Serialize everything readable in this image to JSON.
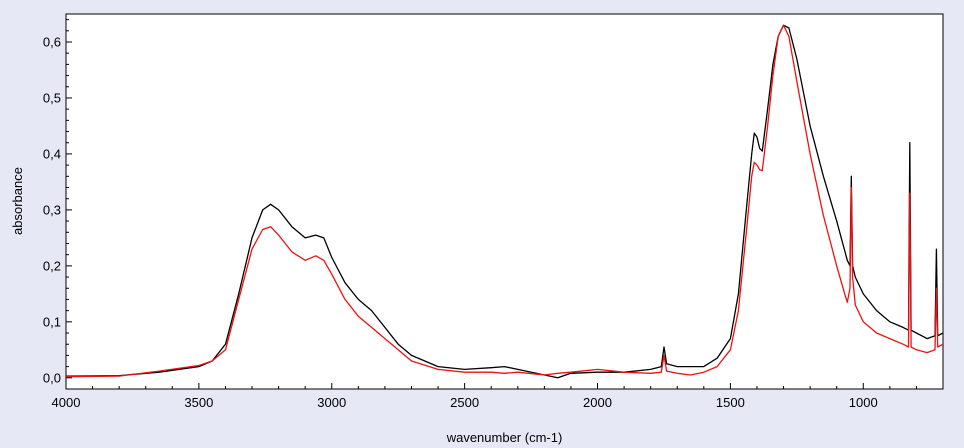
{
  "chart_data": {
    "type": "line",
    "title": "",
    "xlabel": "wavenumber (cm-1)",
    "ylabel": "absorbance",
    "xlim": [
      4000,
      700
    ],
    "ylim": [
      -0.02,
      0.65
    ],
    "x_reversed": true,
    "x_ticks": [
      4000,
      3500,
      3000,
      2500,
      2000,
      1500,
      1000
    ],
    "x_tick_labels": [
      "4000",
      "3500",
      "3000",
      "2500",
      "2000",
      "1500",
      "1000"
    ],
    "y_ticks": [
      0.0,
      0.1,
      0.2,
      0.3,
      0.4,
      0.5,
      0.6
    ],
    "y_tick_labels": [
      "0,0",
      "0,1",
      "0,2",
      "0,3",
      "0,4",
      "0,5",
      "0,6"
    ],
    "grid": false,
    "legend": "none",
    "series": [
      {
        "color": "#000000",
        "points": [
          [
            4000,
            0.003
          ],
          [
            3800,
            0.004
          ],
          [
            3650,
            0.01
          ],
          [
            3500,
            0.02
          ],
          [
            3450,
            0.03
          ],
          [
            3400,
            0.06
          ],
          [
            3350,
            0.15
          ],
          [
            3300,
            0.25
          ],
          [
            3260,
            0.3
          ],
          [
            3230,
            0.31
          ],
          [
            3200,
            0.3
          ],
          [
            3150,
            0.27
          ],
          [
            3100,
            0.25
          ],
          [
            3060,
            0.255
          ],
          [
            3030,
            0.25
          ],
          [
            3000,
            0.215
          ],
          [
            2950,
            0.17
          ],
          [
            2900,
            0.14
          ],
          [
            2850,
            0.12
          ],
          [
            2800,
            0.09
          ],
          [
            2750,
            0.06
          ],
          [
            2700,
            0.04
          ],
          [
            2600,
            0.02
          ],
          [
            2500,
            0.015
          ],
          [
            2400,
            0.018
          ],
          [
            2350,
            0.02
          ],
          [
            2300,
            0.015
          ],
          [
            2200,
            0.005
          ],
          [
            2150,
            0.0
          ],
          [
            2100,
            0.008
          ],
          [
            2000,
            0.01
          ],
          [
            1900,
            0.01
          ],
          [
            1800,
            0.015
          ],
          [
            1760,
            0.02
          ],
          [
            1750,
            0.055
          ],
          [
            1740,
            0.025
          ],
          [
            1700,
            0.02
          ],
          [
            1650,
            0.02
          ],
          [
            1600,
            0.02
          ],
          [
            1550,
            0.035
          ],
          [
            1500,
            0.07
          ],
          [
            1470,
            0.15
          ],
          [
            1440,
            0.3
          ],
          [
            1420,
            0.4
          ],
          [
            1410,
            0.437
          ],
          [
            1400,
            0.43
          ],
          [
            1390,
            0.41
          ],
          [
            1380,
            0.405
          ],
          [
            1360,
            0.48
          ],
          [
            1340,
            0.56
          ],
          [
            1320,
            0.61
          ],
          [
            1300,
            0.63
          ],
          [
            1280,
            0.625
          ],
          [
            1250,
            0.57
          ],
          [
            1200,
            0.45
          ],
          [
            1150,
            0.36
          ],
          [
            1100,
            0.28
          ],
          [
            1060,
            0.21
          ],
          [
            1050,
            0.2
          ],
          [
            1045,
            0.36
          ],
          [
            1040,
            0.2
          ],
          [
            1030,
            0.18
          ],
          [
            1000,
            0.15
          ],
          [
            950,
            0.12
          ],
          [
            900,
            0.1
          ],
          [
            850,
            0.09
          ],
          [
            830,
            0.085
          ],
          [
            825,
            0.42
          ],
          [
            820,
            0.085
          ],
          [
            800,
            0.08
          ],
          [
            760,
            0.07
          ],
          [
            730,
            0.075
          ],
          [
            725,
            0.23
          ],
          [
            720,
            0.075
          ],
          [
            700,
            0.08
          ]
        ]
      },
      {
        "color": "#ee1111",
        "points": [
          [
            4000,
            0.002
          ],
          [
            3800,
            0.003
          ],
          [
            3650,
            0.012
          ],
          [
            3500,
            0.022
          ],
          [
            3450,
            0.03
          ],
          [
            3400,
            0.05
          ],
          [
            3350,
            0.14
          ],
          [
            3300,
            0.23
          ],
          [
            3260,
            0.265
          ],
          [
            3230,
            0.27
          ],
          [
            3200,
            0.255
          ],
          [
            3150,
            0.225
          ],
          [
            3100,
            0.21
          ],
          [
            3060,
            0.218
          ],
          [
            3030,
            0.21
          ],
          [
            3000,
            0.185
          ],
          [
            2950,
            0.14
          ],
          [
            2900,
            0.11
          ],
          [
            2850,
            0.09
          ],
          [
            2800,
            0.07
          ],
          [
            2750,
            0.05
          ],
          [
            2700,
            0.03
          ],
          [
            2600,
            0.015
          ],
          [
            2500,
            0.01
          ],
          [
            2400,
            0.01
          ],
          [
            2350,
            0.008
          ],
          [
            2300,
            0.01
          ],
          [
            2200,
            0.005
          ],
          [
            2150,
            0.008
          ],
          [
            2100,
            0.01
          ],
          [
            2000,
            0.015
          ],
          [
            1900,
            0.01
          ],
          [
            1800,
            0.008
          ],
          [
            1760,
            0.01
          ],
          [
            1750,
            0.04
          ],
          [
            1740,
            0.012
          ],
          [
            1700,
            0.008
          ],
          [
            1650,
            0.005
          ],
          [
            1600,
            0.01
          ],
          [
            1550,
            0.02
          ],
          [
            1500,
            0.05
          ],
          [
            1470,
            0.12
          ],
          [
            1440,
            0.26
          ],
          [
            1420,
            0.36
          ],
          [
            1410,
            0.385
          ],
          [
            1400,
            0.38
          ],
          [
            1390,
            0.372
          ],
          [
            1380,
            0.37
          ],
          [
            1360,
            0.45
          ],
          [
            1340,
            0.54
          ],
          [
            1320,
            0.61
          ],
          [
            1300,
            0.63
          ],
          [
            1280,
            0.61
          ],
          [
            1250,
            0.53
          ],
          [
            1200,
            0.4
          ],
          [
            1150,
            0.29
          ],
          [
            1100,
            0.2
          ],
          [
            1070,
            0.15
          ],
          [
            1060,
            0.135
          ],
          [
            1050,
            0.16
          ],
          [
            1045,
            0.34
          ],
          [
            1040,
            0.18
          ],
          [
            1030,
            0.13
          ],
          [
            1000,
            0.1
          ],
          [
            950,
            0.08
          ],
          [
            900,
            0.07
          ],
          [
            850,
            0.06
          ],
          [
            830,
            0.055
          ],
          [
            825,
            0.33
          ],
          [
            820,
            0.055
          ],
          [
            800,
            0.05
          ],
          [
            760,
            0.045
          ],
          [
            730,
            0.05
          ],
          [
            725,
            0.16
          ],
          [
            720,
            0.055
          ],
          [
            700,
            0.06
          ]
        ]
      }
    ]
  }
}
